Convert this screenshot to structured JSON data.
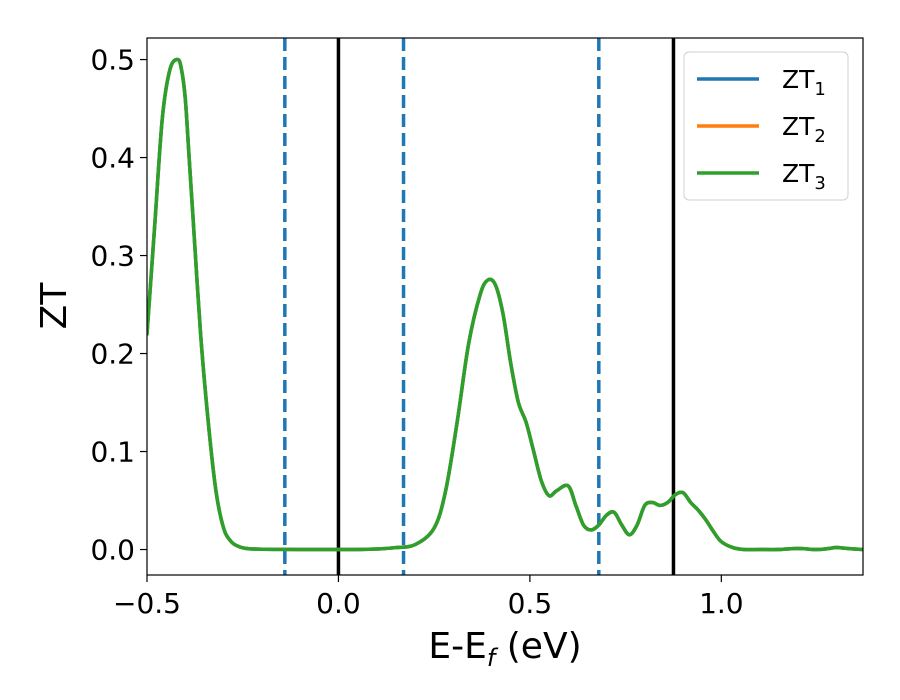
{
  "chart_data": {
    "type": "line",
    "title": "",
    "xlabel_main": "E-E",
    "xlabel_sub": "f",
    "xlabel_unit": " (eV)",
    "ylabel": "ZT",
    "xlim": [
      -0.5,
      1.37
    ],
    "ylim": [
      -0.026,
      0.522
    ],
    "x_ticks": [
      {
        "value": -0.5,
        "label": "−0.5"
      },
      {
        "value": 0.0,
        "label": "0.0"
      },
      {
        "value": 0.5,
        "label": "0.5"
      },
      {
        "value": 1.0,
        "label": "1.0"
      }
    ],
    "y_ticks": [
      {
        "value": 0.0,
        "label": "0.0"
      },
      {
        "value": 0.1,
        "label": "0.1"
      },
      {
        "value": 0.2,
        "label": "0.2"
      },
      {
        "value": 0.3,
        "label": "0.3"
      },
      {
        "value": 0.4,
        "label": "0.4"
      },
      {
        "value": 0.5,
        "label": "0.5"
      }
    ],
    "grid": false,
    "legend_position": "top-right",
    "series": [
      {
        "name": "ZT",
        "sub": "1",
        "color": "#1f77b4"
      },
      {
        "name": "ZT",
        "sub": "2",
        "color": "#ff7f0e"
      },
      {
        "name": "ZT",
        "sub": "3",
        "color": "#2ca02c"
      }
    ],
    "x": [
      -0.5,
      -0.48,
      -0.46,
      -0.44,
      -0.42,
      -0.41,
      -0.4,
      -0.39,
      -0.38,
      -0.36,
      -0.34,
      -0.32,
      -0.3,
      -0.28,
      -0.26,
      -0.24,
      -0.22,
      -0.2,
      -0.15,
      -0.1,
      -0.05,
      0.0,
      0.05,
      0.1,
      0.15,
      0.2,
      0.25,
      0.28,
      0.31,
      0.34,
      0.37,
      0.39,
      0.41,
      0.43,
      0.45,
      0.47,
      0.49,
      0.51,
      0.53,
      0.55,
      0.57,
      0.6,
      0.62,
      0.64,
      0.66,
      0.68,
      0.7,
      0.72,
      0.74,
      0.76,
      0.78,
      0.8,
      0.82,
      0.84,
      0.86,
      0.88,
      0.9,
      0.92,
      0.94,
      0.96,
      0.98,
      1.0,
      1.03,
      1.06,
      1.1,
      1.15,
      1.2,
      1.25,
      1.28,
      1.3,
      1.33,
      1.37
    ],
    "y": [
      0.22,
      0.33,
      0.44,
      0.49,
      0.5,
      0.49,
      0.46,
      0.4,
      0.34,
      0.22,
      0.13,
      0.06,
      0.022,
      0.008,
      0.003,
      0.001,
      0.0005,
      0.0003,
      0.0001,
      0.0,
      0.0,
      0.0,
      0.0,
      0.0005,
      0.002,
      0.005,
      0.022,
      0.06,
      0.13,
      0.21,
      0.26,
      0.275,
      0.27,
      0.24,
      0.19,
      0.15,
      0.13,
      0.1,
      0.07,
      0.055,
      0.06,
      0.065,
      0.045,
      0.025,
      0.02,
      0.025,
      0.035,
      0.038,
      0.025,
      0.015,
      0.025,
      0.045,
      0.048,
      0.045,
      0.048,
      0.056,
      0.058,
      0.048,
      0.04,
      0.03,
      0.018,
      0.008,
      0.002,
      0.0,
      0.0,
      0.0,
      0.001,
      0.0,
      0.001,
      0.002,
      0.001,
      0.0
    ],
    "vlines": [
      {
        "x": -0.14,
        "style": "dashed",
        "color": "#1f77b4"
      },
      {
        "x": 0.0,
        "style": "solid",
        "color": "#000000"
      },
      {
        "x": 0.17,
        "style": "dashed",
        "color": "#1f77b4"
      },
      {
        "x": 0.68,
        "style": "dashed",
        "color": "#1f77b4"
      },
      {
        "x": 0.875,
        "style": "solid",
        "color": "#000000"
      }
    ]
  }
}
